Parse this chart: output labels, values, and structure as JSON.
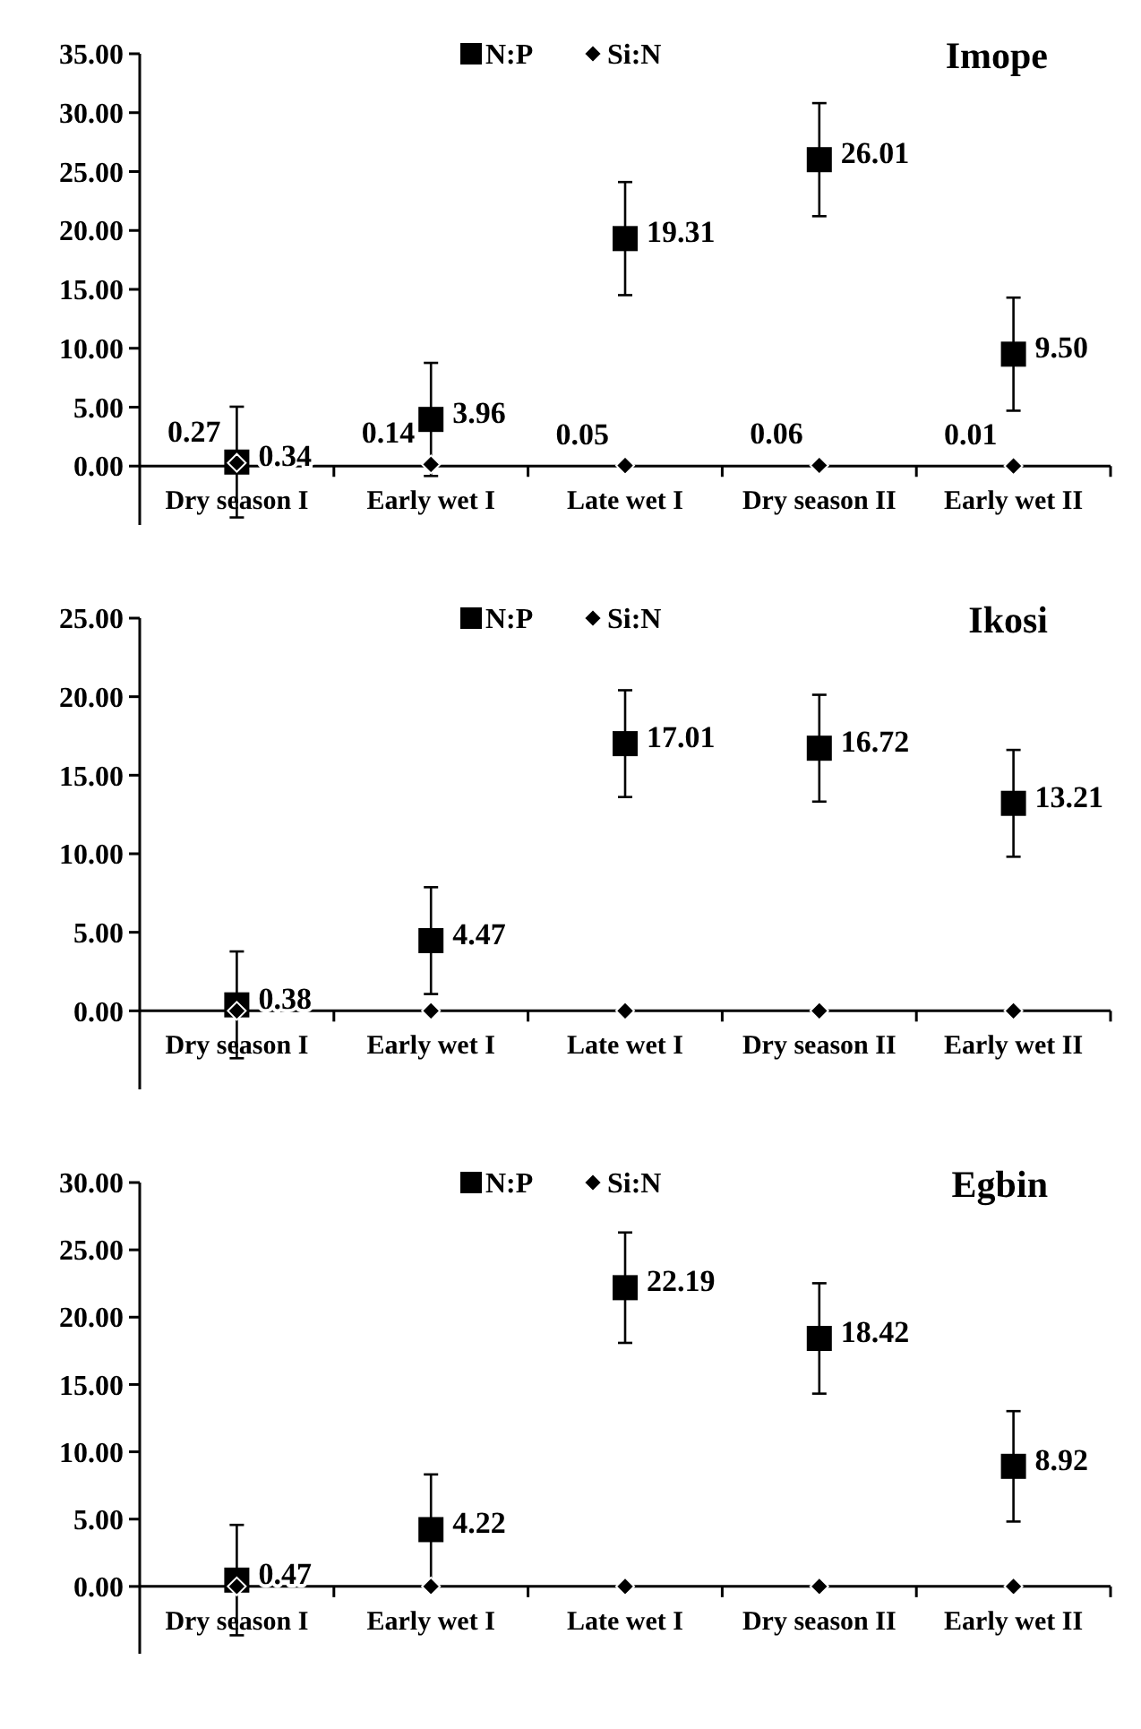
{
  "chart_data": [
    {
      "type": "scatter",
      "title": "Imope",
      "categories": [
        "Dry season I",
        "Early wet I",
        "Late wet I",
        "Dry season II",
        "Early wet II"
      ],
      "ylim": [
        -5,
        35
      ],
      "yticks": [
        {
          "value": 0,
          "label": "0.00"
        },
        {
          "value": 5,
          "label": "5.00"
        },
        {
          "value": 10,
          "label": "10.00"
        },
        {
          "value": 15,
          "label": "15.00"
        },
        {
          "value": 20,
          "label": "20.00"
        },
        {
          "value": 25,
          "label": "25.00"
        },
        {
          "value": 30,
          "label": "30.00"
        },
        {
          "value": 35,
          "label": "35.00"
        }
      ],
      "legend": "top",
      "grid": false,
      "series": [
        {
          "name": "N:P",
          "color": "#000000",
          "marker": "square",
          "values": [
            0.34,
            3.96,
            19.31,
            26.01,
            9.5
          ],
          "errors": [
            4.7,
            4.8,
            4.8,
            4.8,
            4.8
          ],
          "value_labels": [
            "0.34",
            "3.96",
            "19.31",
            "26.01",
            "9.50"
          ]
        },
        {
          "name": "Si:N",
          "color": "#000000",
          "marker": "diamond",
          "values": [
            0.27,
            0.14,
            0.05,
            0.06,
            0.01
          ],
          "value_labels": [
            "0.27",
            "0.14",
            "0.05",
            "0.06",
            "0.01"
          ]
        }
      ]
    },
    {
      "type": "scatter",
      "title": "Ikosi",
      "categories": [
        "Dry season I",
        "Early wet I",
        "Late wet I",
        "Dry season II",
        "Early wet II"
      ],
      "ylim": [
        -5,
        25
      ],
      "yticks": [
        {
          "value": 0,
          "label": "0.00"
        },
        {
          "value": 5,
          "label": "5.00"
        },
        {
          "value": 10,
          "label": "10.00"
        },
        {
          "value": 15,
          "label": "15.00"
        },
        {
          "value": 20,
          "label": "20.00"
        },
        {
          "value": 25,
          "label": "25.00"
        }
      ],
      "legend": "top",
      "grid": false,
      "series": [
        {
          "name": "N:P",
          "color": "#000000",
          "marker": "square",
          "values": [
            0.38,
            4.47,
            17.01,
            16.72,
            13.21
          ],
          "errors": [
            3.4,
            3.4,
            3.4,
            3.4,
            3.4
          ],
          "value_labels": [
            "0.38",
            "4.47",
            "17.01",
            "16.72",
            "13.21"
          ]
        },
        {
          "name": "Si:N",
          "color": "#000000",
          "marker": "diamond",
          "values": [
            0,
            0,
            0,
            0,
            0
          ]
        }
      ]
    },
    {
      "type": "scatter",
      "title": "Egbin",
      "categories": [
        "Dry season I",
        "Early wet I",
        "Late wet I",
        "Dry season II",
        "Early wet II"
      ],
      "ylim": [
        -5,
        30
      ],
      "yticks": [
        {
          "value": 0,
          "label": "0.00"
        },
        {
          "value": 5,
          "label": "5.00"
        },
        {
          "value": 10,
          "label": "10.00"
        },
        {
          "value": 15,
          "label": "15.00"
        },
        {
          "value": 20,
          "label": "20.00"
        },
        {
          "value": 25,
          "label": "25.00"
        },
        {
          "value": 30,
          "label": "30.00"
        }
      ],
      "legend": "top",
      "grid": false,
      "series": [
        {
          "name": "N:P",
          "color": "#000000",
          "marker": "square",
          "values": [
            0.47,
            4.22,
            22.19,
            18.42,
            8.92
          ],
          "errors": [
            4.1,
            4.1,
            4.1,
            4.1,
            4.1
          ],
          "value_labels": [
            "0.47",
            "4.22",
            "22.19",
            "18.42",
            "8.92"
          ]
        },
        {
          "name": "Si:N",
          "color": "#000000",
          "marker": "diamond",
          "values": [
            0,
            0,
            0,
            0,
            0
          ]
        }
      ]
    }
  ]
}
